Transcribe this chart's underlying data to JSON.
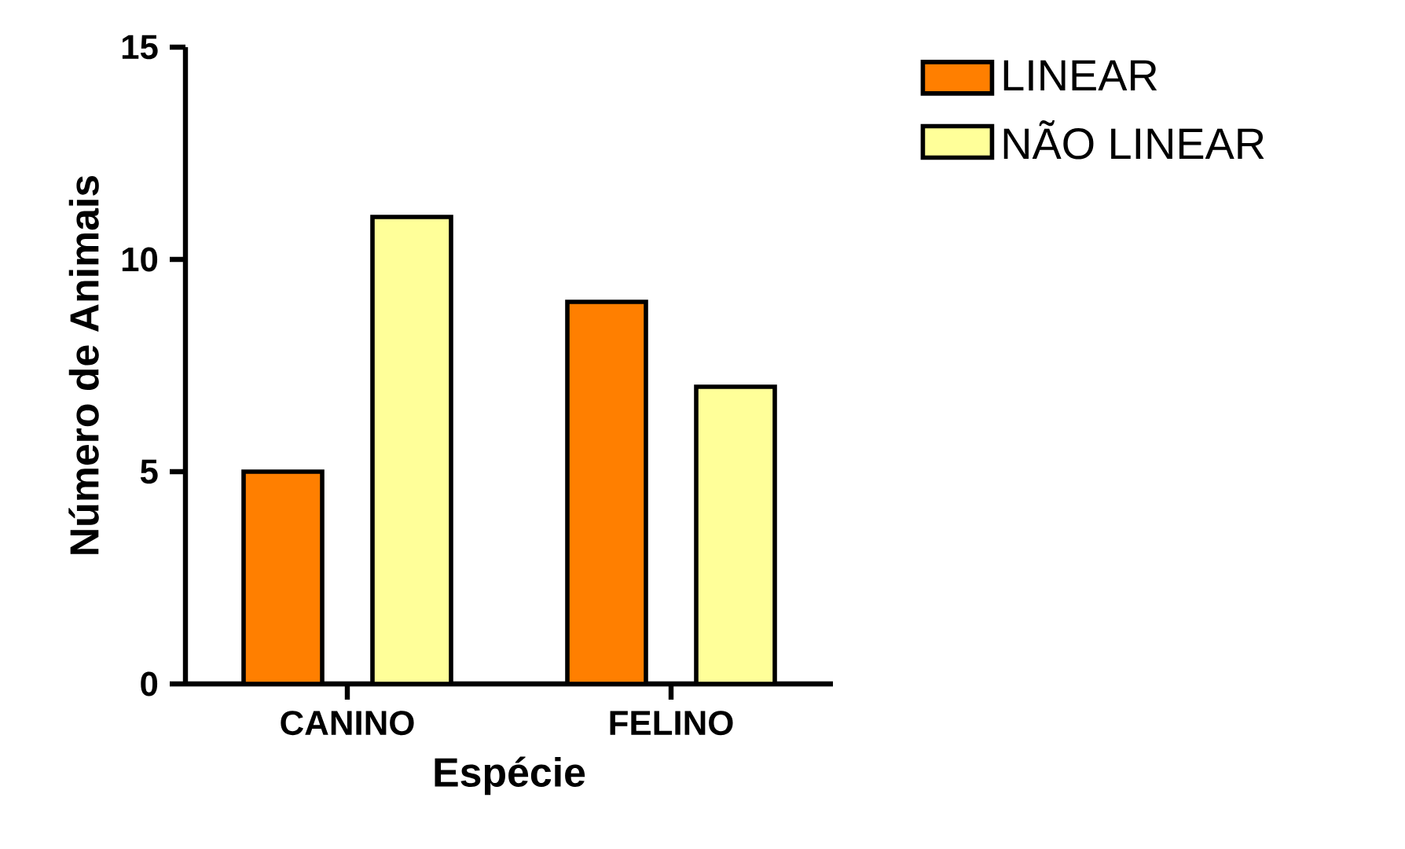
{
  "chart_data": {
    "type": "bar",
    "xlabel": "Espécie",
    "ylabel": "Número de Animais",
    "categories": [
      "CANINO",
      "FELINO"
    ],
    "series": [
      {
        "name": "LINEAR",
        "color": "#ff7f00",
        "values": [
          5,
          9
        ]
      },
      {
        "name": "NÃO LINEAR",
        "color": "#ffff99",
        "values": [
          11,
          7
        ]
      }
    ],
    "ylim": [
      0,
      15
    ],
    "yticks": [
      0,
      5,
      10,
      15
    ],
    "legend": "top right"
  }
}
